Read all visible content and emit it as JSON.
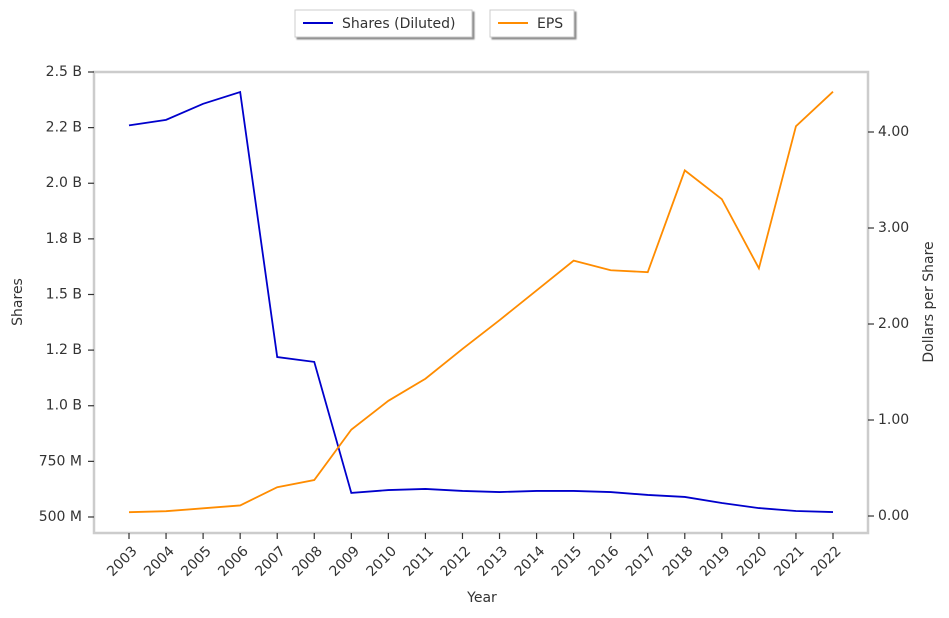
{
  "chart_data": {
    "type": "line",
    "categories": [
      "2003",
      "2004",
      "2005",
      "2006",
      "2007",
      "2008",
      "2009",
      "2010",
      "2011",
      "2012",
      "2013",
      "2014",
      "2015",
      "2016",
      "2017",
      "2018",
      "2019",
      "2020",
      "2021",
      "2022"
    ],
    "series": [
      {
        "name": "Shares (Diluted)",
        "color": "#0000cc",
        "values": [
          2260000000,
          2285000000,
          2357000000,
          2410000000,
          1219000000,
          1197000000,
          608000000,
          621000000,
          626000000,
          617000000,
          612000000,
          617000000,
          617000000,
          612000000,
          599000000,
          590000000,
          563000000,
          540000000,
          527000000,
          522000000
        ]
      },
      {
        "name": "EPS",
        "color": "#ff8c00",
        "axis": "y2",
        "values": [
          0.04,
          0.05,
          0.08,
          0.11,
          0.3,
          0.375,
          0.9,
          1.2,
          1.43,
          1.74,
          2.04,
          2.35,
          2.66,
          2.56,
          2.54,
          3.6,
          3.3,
          2.58,
          4.06,
          4.42
        ]
      }
    ],
    "x_label": "Year",
    "y_label": "Shares",
    "y2_label": "Dollars per Share",
    "ylim": [
      428000000,
      2500000000
    ],
    "yticks": [
      {
        "value": 500000000,
        "label": "500 M"
      },
      {
        "value": 750000000,
        "label": "750 M"
      },
      {
        "value": 1000000000,
        "label": "1.0 B"
      },
      {
        "value": 1250000000,
        "label": "1.2 B"
      },
      {
        "value": 1500000000,
        "label": "1.5 B"
      },
      {
        "value": 1750000000,
        "label": "1.8 B"
      },
      {
        "value": 2000000000,
        "label": "2.0 B"
      },
      {
        "value": 2250000000,
        "label": "2.2 B"
      },
      {
        "value": 2500000000,
        "label": "2.5 B"
      }
    ],
    "y2lim": [
      -0.177,
      4.625
    ],
    "y2ticks": [
      {
        "value": 0,
        "label": "0.00"
      },
      {
        "value": 1,
        "label": "1.00"
      },
      {
        "value": 2,
        "label": "2.00"
      },
      {
        "value": 3,
        "label": "3.00"
      },
      {
        "value": 4,
        "label": "4.00"
      }
    ],
    "legend": "upper center",
    "grid": false
  }
}
